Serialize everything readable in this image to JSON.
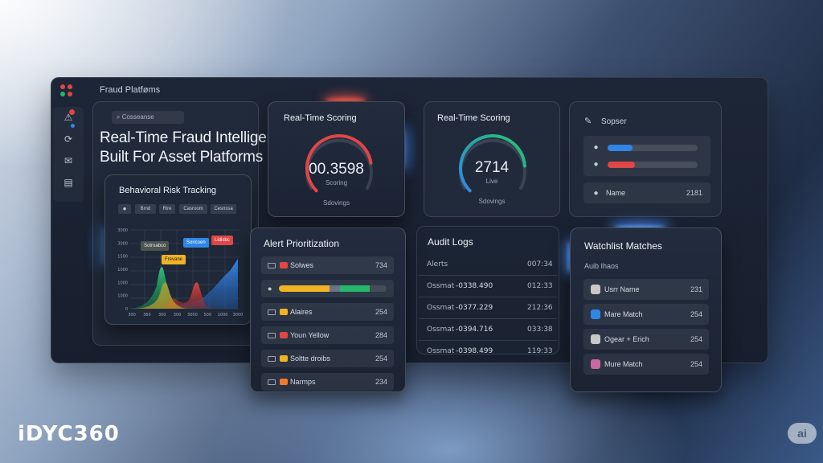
{
  "window": {
    "title": "Fraud Platføms"
  },
  "hero": {
    "search_placeholder": "Cosseanse",
    "title_line1": "Real-Time Fraud Intelligence,",
    "title_line2": "Built For Asset Platforms"
  },
  "behavioral": {
    "title": "Behavioral Risk Tracking",
    "chips": [
      "Brnd",
      "Rire",
      "Casroom",
      "Cesnssa"
    ],
    "y_ticks": [
      "3000",
      "3000",
      "1500",
      "1000",
      "1000",
      "1000",
      "0"
    ],
    "x_ticks": [
      "300",
      "360",
      "300",
      "300",
      "3000",
      "500",
      "1000",
      "3000"
    ],
    "callouts": [
      {
        "text": "Sotroabco",
        "color": "#59625a"
      },
      {
        "text": "Soricoen",
        "color": "#2f86e6"
      },
      {
        "text": "Lidisbc",
        "color": "#e04646"
      },
      {
        "text": "Frevane",
        "color": "#f0b323"
      }
    ]
  },
  "scoring1": {
    "title": "Real-Time Scoring",
    "value": "00.3598",
    "sub": "Scoring",
    "footer": "Sdovings",
    "level": 0.8
  },
  "scoring2": {
    "title": "Real-Time Scoring",
    "value": "2714",
    "sub": "Live",
    "footer": "Sdovings",
    "level": 0.82
  },
  "sopser": {
    "title": "Sopser",
    "bars": [
      {
        "color": "#2f86e6",
        "level": 0.28
      },
      {
        "color": "#e04646",
        "level": 0.3
      }
    ],
    "name_label": "Name",
    "name_value": "2181"
  },
  "alerts": {
    "title": "Alert Prioritization",
    "rows": [
      {
        "label": "Solwes",
        "value": "734",
        "color": "#e04646"
      },
      {
        "label": "Alaires",
        "value": "254",
        "color": "#f0b323"
      },
      {
        "label": "Youn Yellow",
        "value": "284",
        "color": "#e04646"
      },
      {
        "label": "Soltte droibs",
        "value": "254",
        "color": "#f0b323"
      },
      {
        "label": "Narmps",
        "value": "234",
        "color": "#f07a2a"
      }
    ],
    "progress": {
      "yellow": 0.47,
      "gray": 0.1,
      "green": 0.27
    }
  },
  "audit": {
    "title": "Audit Logs",
    "header_left": "Alerts",
    "header_right": "007:34",
    "rows": [
      {
        "a": "Ossmat",
        "b": "-0338.490",
        "c": "012:33"
      },
      {
        "a": "Ossmat",
        "b": "-0377.229",
        "c": "212:36"
      },
      {
        "a": "Ossmat",
        "b": "-0394.716",
        "c": "033:38"
      },
      {
        "a": "Ossmat",
        "b": "-0398.499",
        "c": "119:33"
      }
    ]
  },
  "watchlist": {
    "title": "Watchlist Matches",
    "subtitle": "Auib Ihaos",
    "rows": [
      {
        "label": "Usrr Name",
        "value": "231",
        "color": "#c8c8c8"
      },
      {
        "label": "Mare Match",
        "value": "254",
        "color": "#2f86e6"
      },
      {
        "label": "Ogear + Erich",
        "value": "254",
        "color": "#c8c8c8"
      },
      {
        "label": "Mure Match",
        "value": "254",
        "color": "#c86aa0"
      }
    ]
  },
  "brand": "iDYC360",
  "ai_badge": "ai",
  "colors": {
    "red": "#e04646",
    "yellow": "#f0b323",
    "green": "#25b86a",
    "blue": "#2f86e6",
    "accent_glow": "#3d8dff"
  }
}
